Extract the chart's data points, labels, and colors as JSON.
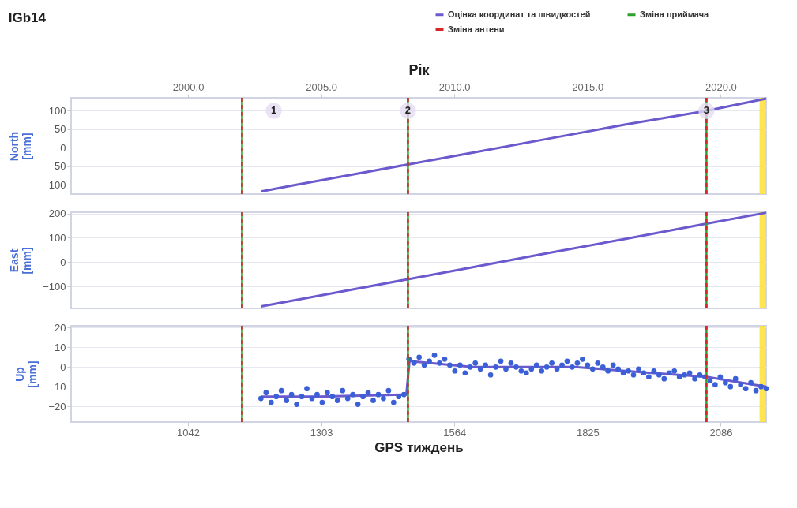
{
  "chart_data": [
    {
      "type": "line",
      "title": "IGb14",
      "ylabel": "North [mm]",
      "x2label": "Рік",
      "xlim": [
        813,
        2175
      ],
      "x2lim": [
        1995.61,
        2021.71
      ],
      "x2ticks": [
        {
          "value": 2000,
          "label": "2000.0"
        },
        {
          "value": 2005,
          "label": "2005.0"
        },
        {
          "value": 2010,
          "label": "2010.0"
        },
        {
          "value": 2015,
          "label": "2015.0"
        },
        {
          "value": 2020,
          "label": "2020.0"
        }
      ],
      "ylim": [
        -125,
        135
      ],
      "yticks": [
        -100,
        -50,
        0,
        50,
        100
      ],
      "tick_labels": "y",
      "grid": "y",
      "legend": "top right",
      "series": [
        {
          "name": "Оцінка координат та швидкостей",
          "color": "#6a5acd",
          "x": [
            1185,
            1250,
            1350,
            1473,
            1600,
            1750,
            1900,
            2058,
            2175
          ],
          "values": [
            -118,
            -101,
            -76,
            -45,
            -13,
            25,
            63,
            100,
            133
          ]
        }
      ],
      "ref_lines": [
        {
          "axis": "x",
          "value": 1148,
          "label": "Зміна приймача",
          "color": "#2ca02c",
          "line_style": "solid"
        },
        {
          "axis": "x",
          "value": 1148,
          "label": "Зміна антени",
          "color": "#d62728",
          "line_style": "dashed"
        },
        {
          "axis": "x",
          "value": 1473,
          "color": "#2ca02c",
          "line_style": "solid"
        },
        {
          "axis": "x",
          "value": 1473,
          "color": "#d62728",
          "line_style": "dashed"
        },
        {
          "axis": "x",
          "value": 2058,
          "color": "#2ca02c",
          "line_style": "solid"
        },
        {
          "axis": "x",
          "value": 2058,
          "color": "#d62728",
          "line_style": "dashed"
        }
      ],
      "bands": [
        {
          "axis": "x",
          "from": 2162,
          "to": 2172,
          "color": "#ffe033"
        }
      ],
      "annotations": [
        {
          "text": "1",
          "x": 1210,
          "y": 100
        },
        {
          "text": "2",
          "x": 1473,
          "y": 100
        },
        {
          "text": "3",
          "x": 2058,
          "y": 100
        }
      ]
    },
    {
      "type": "line",
      "ylabel": "East [mm]",
      "xlim": [
        813,
        2175
      ],
      "ylim": [
        -190,
        205
      ],
      "yticks": [
        -100,
        0,
        100,
        200
      ],
      "tick_labels": "y",
      "grid": "y",
      "series": [
        {
          "color": "#6a5acd",
          "x": [
            1185,
            1250,
            1350,
            1473,
            1600,
            1750,
            1900,
            2058,
            2175
          ],
          "values": [
            -182,
            -157,
            -118,
            -70,
            -21,
            38,
            96,
            158,
            203
          ]
        }
      ],
      "ref_lines": [
        {
          "axis": "x",
          "value": 1148,
          "color": "#2ca02c",
          "line_style": "solid"
        },
        {
          "axis": "x",
          "value": 1148,
          "color": "#d62728",
          "line_style": "dashed"
        },
        {
          "axis": "x",
          "value": 1473,
          "color": "#2ca02c",
          "line_style": "solid"
        },
        {
          "axis": "x",
          "value": 1473,
          "color": "#d62728",
          "line_style": "dashed"
        },
        {
          "axis": "x",
          "value": 2058,
          "color": "#2ca02c",
          "line_style": "solid"
        },
        {
          "axis": "x",
          "value": 2058,
          "color": "#d62728",
          "line_style": "dashed"
        }
      ],
      "bands": [
        {
          "axis": "x",
          "from": 2162,
          "to": 2172,
          "color": "#ffe033"
        }
      ]
    },
    {
      "type": "scatter",
      "ylabel": "Up [mm]",
      "xlabel": "GPS тиждень",
      "xlim": [
        813,
        2175
      ],
      "xticks": [
        1042,
        1303,
        1564,
        1825,
        2086
      ],
      "ylim": [
        -28,
        21
      ],
      "yticks": [
        -20,
        -10,
        0,
        10,
        20
      ],
      "grid": "y",
      "series": [
        {
          "marker": "circle",
          "color": "#3a5fd6",
          "x": [
            1185,
            1195,
            1205,
            1215,
            1225,
            1235,
            1245,
            1255,
            1265,
            1275,
            1285,
            1295,
            1305,
            1315,
            1325,
            1335,
            1345,
            1355,
            1365,
            1375,
            1385,
            1395,
            1405,
            1415,
            1425,
            1435,
            1445,
            1455,
            1465,
            1475,
            1485,
            1495,
            1505,
            1515,
            1525,
            1535,
            1545,
            1555,
            1565,
            1575,
            1585,
            1595,
            1605,
            1615,
            1625,
            1635,
            1645,
            1655,
            1665,
            1675,
            1685,
            1695,
            1705,
            1715,
            1725,
            1735,
            1745,
            1755,
            1765,
            1775,
            1785,
            1795,
            1805,
            1815,
            1825,
            1835,
            1845,
            1855,
            1865,
            1875,
            1885,
            1895,
            1905,
            1915,
            1925,
            1935,
            1945,
            1955,
            1965,
            1975,
            1985,
            1995,
            2005,
            2015,
            2025,
            2035,
            2045,
            2055,
            2065,
            2075,
            2085,
            2095,
            2105,
            2115,
            2125,
            2135,
            2145,
            2155,
            2165,
            2175
          ],
          "values": [
            -16,
            -13,
            -18,
            -15,
            -12,
            -17,
            -14,
            -19,
            -15,
            -11,
            -16,
            -14,
            -18,
            -13,
            -15,
            -17,
            -12,
            -16,
            -14,
            -19,
            -15,
            -13,
            -17,
            -14,
            -16,
            -12,
            -18,
            -15,
            -14,
            4,
            2,
            5,
            1,
            3,
            6,
            2,
            4,
            1,
            -2,
            1,
            -3,
            0,
            2,
            -1,
            1,
            -4,
            0,
            3,
            -1,
            2,
            0,
            -2,
            -3,
            -1,
            1,
            -2,
            0,
            2,
            -1,
            1,
            3,
            0,
            2,
            4,
            1,
            -1,
            2,
            0,
            -2,
            1,
            -1,
            -3,
            -2,
            -4,
            -1,
            -3,
            -5,
            -2,
            -4,
            -6,
            -3,
            -2,
            -5,
            -4,
            -3,
            -6,
            -4,
            -5,
            -7,
            -9,
            -5,
            -8,
            -10,
            -6,
            -9,
            -11,
            -8,
            -12,
            -10,
            -11
          ]
        },
        {
          "type": "line",
          "color": "#6a5acd",
          "x": [
            1185,
            1300,
            1470,
            1476,
            1600,
            1800,
            1950,
            2058,
            2175
          ],
          "values": [
            -15,
            -15,
            -14,
            3,
            0,
            0,
            -3,
            -5,
            -10
          ]
        }
      ],
      "ref_lines": [
        {
          "axis": "x",
          "value": 1148,
          "color": "#2ca02c",
          "line_style": "solid"
        },
        {
          "axis": "x",
          "value": 1148,
          "color": "#d62728",
          "line_style": "dashed"
        },
        {
          "axis": "x",
          "value": 1473,
          "color": "#2ca02c",
          "line_style": "solid"
        },
        {
          "axis": "x",
          "value": 1473,
          "color": "#d62728",
          "line_style": "dashed"
        },
        {
          "axis": "x",
          "value": 2058,
          "color": "#2ca02c",
          "line_style": "solid"
        },
        {
          "axis": "x",
          "value": 2058,
          "color": "#d62728",
          "line_style": "dashed"
        }
      ],
      "bands": [
        {
          "axis": "x",
          "from": 2162,
          "to": 2172,
          "color": "#ffe033"
        }
      ]
    }
  ]
}
